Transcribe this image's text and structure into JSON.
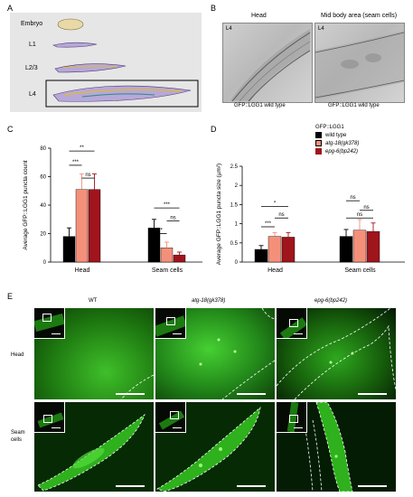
{
  "panelA": {
    "letter": "A",
    "stages": [
      "Embryo",
      "L1",
      "L2/3",
      "L4"
    ]
  },
  "panelB": {
    "letter": "B",
    "head_title": "Head",
    "mid_title": "Mid body area (seam cells)",
    "stage_tag": "L4",
    "caption": "GFP::LGG1 wild type"
  },
  "panelE": {
    "letter": "E",
    "columns": [
      "WT",
      "atg-18(gk378)",
      "epg-6(bp242)"
    ],
    "rows": [
      "Head",
      "Seam\ncells"
    ]
  },
  "legend": {
    "title": "GFP::LGG1",
    "entries": [
      {
        "label": "wild type",
        "color": "#000000"
      },
      {
        "label": "atg-18(gk378)",
        "color": "#f4907a"
      },
      {
        "label": "epg-6(bp242)",
        "color": "#a0141c"
      }
    ]
  },
  "chart_data": [
    {
      "letter": "C",
      "type": "bar",
      "categories": [
        "Head",
        "Seam cells"
      ],
      "ylabel": "Average GFP::LGG1 puncta count",
      "ylim": [
        0,
        80
      ],
      "yticks": [
        0,
        20,
        40,
        60,
        80
      ],
      "series": [
        {
          "name": "wild type",
          "values": [
            18,
            24
          ],
          "errors": [
            6,
            6
          ]
        },
        {
          "name": "atg-18(gk378)",
          "values": [
            51,
            10
          ],
          "errors": [
            11,
            4
          ]
        },
        {
          "name": "epg-6(bp242)",
          "values": [
            51,
            5
          ],
          "errors": [
            11,
            2
          ]
        }
      ],
      "significance": [
        {
          "group": 0,
          "from": 0,
          "to": 1,
          "label": "***",
          "y": 68
        },
        {
          "group": 0,
          "from": 1,
          "to": 2,
          "label": "ns",
          "y": 59
        },
        {
          "group": 0,
          "from": 0,
          "to": 2,
          "label": "**",
          "y": 78
        },
        {
          "group": 1,
          "from": 0,
          "to": 2,
          "label": "***",
          "y": 38
        },
        {
          "group": 1,
          "from": 1,
          "to": 2,
          "label": "ns",
          "y": 29
        },
        {
          "group": 1,
          "from": 0,
          "to": 1,
          "label": "**",
          "y": 20
        }
      ]
    },
    {
      "letter": "D",
      "type": "bar",
      "categories": [
        "Head",
        "Seam cells"
      ],
      "ylabel": "Average GFP::LGG1 puncta size (µm²)",
      "ylim": [
        0,
        2.5
      ],
      "yticks": [
        0,
        0.5,
        1,
        1.5,
        2,
        2.5
      ],
      "series": [
        {
          "name": "wild type",
          "values": [
            0.33,
            0.67
          ],
          "errors": [
            0.1,
            0.18
          ]
        },
        {
          "name": "atg-18(gk378)",
          "values": [
            0.67,
            0.83
          ],
          "errors": [
            0.1,
            0.28
          ]
        },
        {
          "name": "epg-6(bp242)",
          "values": [
            0.65,
            0.8
          ],
          "errors": [
            0.12,
            0.22
          ]
        }
      ],
      "significance": [
        {
          "group": 0,
          "from": 0,
          "to": 1,
          "label": "***",
          "y": 0.92
        },
        {
          "group": 0,
          "from": 1,
          "to": 2,
          "label": "ns",
          "y": 1.15
        },
        {
          "group": 0,
          "from": 0,
          "to": 2,
          "label": "*",
          "y": 1.45
        },
        {
          "group": 1,
          "from": 0,
          "to": 1,
          "label": "ns",
          "y": 1.6
        },
        {
          "group": 1,
          "from": 1,
          "to": 2,
          "label": "ns",
          "y": 1.35
        },
        {
          "group": 1,
          "from": 0,
          "to": 2,
          "label": "ns",
          "y": 1.15
        }
      ]
    }
  ]
}
